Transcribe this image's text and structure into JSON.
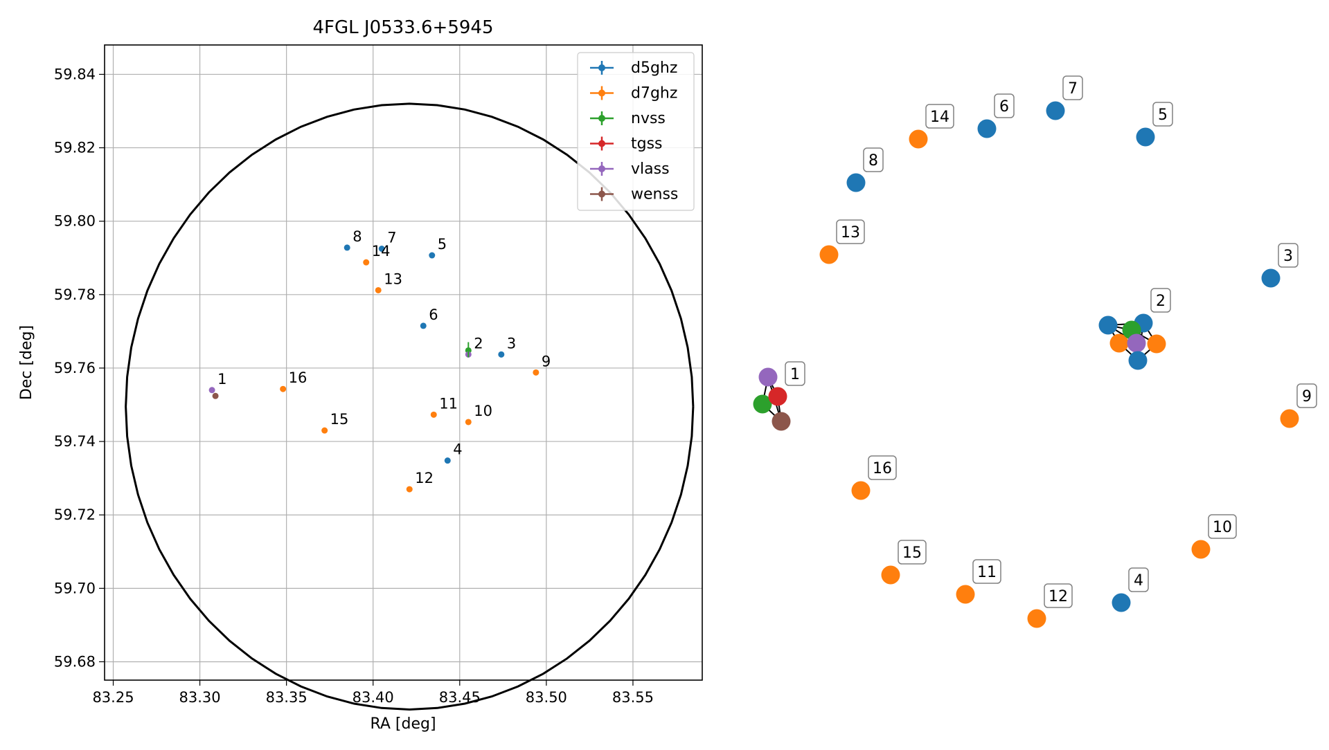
{
  "chart_data": [
    {
      "type": "scatter",
      "title": "4FGL J0533.6+5945",
      "xlabel": "RA [deg]",
      "ylabel": "Dec [deg]",
      "xlim": [
        83.245,
        83.59
      ],
      "ylim": [
        59.675,
        59.848
      ],
      "xticks": [
        83.25,
        83.3,
        83.35,
        83.4,
        83.45,
        83.5,
        83.55
      ],
      "xtick_labels": [
        "83.25",
        "83.30",
        "83.35",
        "83.40",
        "83.45",
        "83.50",
        "83.55"
      ],
      "yticks": [
        59.68,
        59.7,
        59.72,
        59.74,
        59.76,
        59.78,
        59.8,
        59.82,
        59.84
      ],
      "ytick_labels": [
        "59.68",
        "59.70",
        "59.72",
        "59.74",
        "59.76",
        "59.78",
        "59.80",
        "59.82",
        "59.84"
      ],
      "grid": true,
      "legend_position": "top-right",
      "circle": {
        "center_ra": 83.421,
        "center_dec": 59.7495,
        "radius_dec": 0.0825
      },
      "series": [
        {
          "name": "d5ghz",
          "color": "#1f77b4",
          "points": [
            {
              "id": "3",
              "ra": 83.474,
              "dec": 59.7637
            },
            {
              "id": "4",
              "ra": 83.443,
              "dec": 59.7348
            },
            {
              "id": "5",
              "ra": 83.434,
              "dec": 59.7907
            },
            {
              "id": "6",
              "ra": 83.429,
              "dec": 59.7715
            },
            {
              "id": "7",
              "ra": 83.405,
              "dec": 59.7925
            },
            {
              "id": "8",
              "ra": 83.385,
              "dec": 59.7928
            }
          ]
        },
        {
          "name": "d7ghz",
          "color": "#ff7f0e",
          "points": [
            {
              "id": "9",
              "ra": 83.494,
              "dec": 59.7588
            },
            {
              "id": "10",
              "ra": 83.455,
              "dec": 59.7453
            },
            {
              "id": "11",
              "ra": 83.435,
              "dec": 59.7473
            },
            {
              "id": "12",
              "ra": 83.421,
              "dec": 59.727
            },
            {
              "id": "13",
              "ra": 83.403,
              "dec": 59.7812
            },
            {
              "id": "14",
              "ra": 83.396,
              "dec": 59.7888
            },
            {
              "id": "15",
              "ra": 83.372,
              "dec": 59.743
            },
            {
              "id": "16",
              "ra": 83.348,
              "dec": 59.7543
            }
          ]
        },
        {
          "name": "nvss",
          "color": "#2ca02c",
          "points": [
            {
              "id": "2",
              "ra": 83.455,
              "dec": 59.7648
            }
          ]
        },
        {
          "name": "tgss",
          "color": "#d62728",
          "points": []
        },
        {
          "name": "vlass",
          "color": "#9467bd",
          "points": [
            {
              "id": "1",
              "ra": 83.307,
              "dec": 59.754
            },
            {
              "id": "2",
              "ra": 83.455,
              "dec": 59.7637
            }
          ]
        },
        {
          "name": "wenss",
          "color": "#8c564b",
          "points": [
            {
              "id": "1",
              "ra": 83.309,
              "dec": 59.7524
            }
          ]
        }
      ],
      "point_labels": [
        {
          "text": "1",
          "ra": 83.307,
          "dec": 59.754
        },
        {
          "text": "2",
          "ra": 83.455,
          "dec": 59.7637
        },
        {
          "text": "3",
          "ra": 83.474,
          "dec": 59.7637
        },
        {
          "text": "4",
          "ra": 83.443,
          "dec": 59.7348
        },
        {
          "text": "5",
          "ra": 83.434,
          "dec": 59.7907
        },
        {
          "text": "6",
          "ra": 83.429,
          "dec": 59.7715
        },
        {
          "text": "7",
          "ra": 83.405,
          "dec": 59.7925
        },
        {
          "text": "8",
          "ra": 83.385,
          "dec": 59.7928
        },
        {
          "text": "9",
          "ra": 83.494,
          "dec": 59.7588
        },
        {
          "text": "10",
          "ra": 83.455,
          "dec": 59.7453
        },
        {
          "text": "11",
          "ra": 83.435,
          "dec": 59.7473
        },
        {
          "text": "12",
          "ra": 83.421,
          "dec": 59.727
        },
        {
          "text": "13",
          "ra": 83.403,
          "dec": 59.7812
        },
        {
          "text": "14",
          "ra": 83.396,
          "dec": 59.7888
        },
        {
          "text": "15",
          "ra": 83.372,
          "dec": 59.743
        },
        {
          "text": "16",
          "ra": 83.348,
          "dec": 59.7543
        }
      ]
    },
    {
      "type": "network",
      "nodes": [
        {
          "label": "1",
          "color": "#d62728"
        },
        {
          "label": "",
          "color": "#9467bd"
        },
        {
          "label": "",
          "color": "#2ca02c"
        },
        {
          "label": "",
          "color": "#8c564b"
        },
        {
          "label": "2",
          "color": "#1f77b4"
        },
        {
          "label": "",
          "color": "#1f77b4"
        },
        {
          "label": "",
          "color": "#ff7f0e"
        },
        {
          "label": "",
          "color": "#2ca02c"
        },
        {
          "label": "",
          "color": "#9467bd"
        },
        {
          "label": "",
          "color": "#ff7f0e"
        },
        {
          "label": "",
          "color": "#1f77b4"
        },
        {
          "label": "3",
          "color": "#1f77b4"
        },
        {
          "label": "4",
          "color": "#1f77b4"
        },
        {
          "label": "5",
          "color": "#1f77b4"
        },
        {
          "label": "6",
          "color": "#1f77b4"
        },
        {
          "label": "7",
          "color": "#1f77b4"
        },
        {
          "label": "8",
          "color": "#1f77b4"
        },
        {
          "label": "9",
          "color": "#ff7f0e"
        },
        {
          "label": "10",
          "color": "#ff7f0e"
        },
        {
          "label": "11",
          "color": "#ff7f0e"
        },
        {
          "label": "12",
          "color": "#ff7f0e"
        },
        {
          "label": "13",
          "color": "#ff7f0e"
        },
        {
          "label": "14",
          "color": "#ff7f0e"
        },
        {
          "label": "15",
          "color": "#ff7f0e"
        },
        {
          "label": "16",
          "color": "#ff7f0e"
        }
      ]
    }
  ]
}
